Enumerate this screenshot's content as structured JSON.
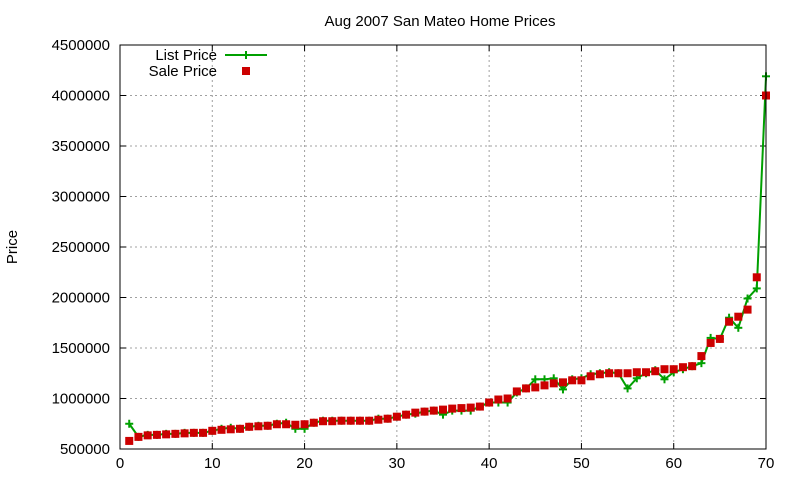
{
  "chart_data": {
    "type": "line",
    "title": "Aug 2007 San Mateo Home Prices",
    "xlabel": "",
    "ylabel": "Price",
    "xlim": [
      0,
      70
    ],
    "ylim": [
      500000,
      4500000
    ],
    "xticks": [
      0,
      10,
      20,
      30,
      40,
      50,
      60,
      70
    ],
    "yticks": [
      500000,
      1000000,
      1500000,
      2000000,
      2500000,
      3000000,
      3500000,
      4000000,
      4500000
    ],
    "grid": true,
    "legend_position": "top-left",
    "series": [
      {
        "name": "List Price",
        "style": "line-plus",
        "color": "#00a000",
        "x": [
          1,
          2,
          3,
          4,
          5,
          6,
          7,
          8,
          9,
          10,
          11,
          12,
          13,
          14,
          15,
          16,
          17,
          18,
          19,
          20,
          21,
          22,
          23,
          24,
          25,
          26,
          27,
          28,
          29,
          30,
          31,
          32,
          33,
          34,
          35,
          36,
          37,
          38,
          39,
          40,
          41,
          42,
          43,
          44,
          45,
          46,
          47,
          48,
          49,
          50,
          51,
          52,
          53,
          54,
          55,
          56,
          57,
          58,
          59,
          60,
          61,
          62,
          63,
          64,
          65,
          66,
          67,
          68,
          69,
          70
        ],
        "y": [
          750000,
          620000,
          640000,
          640000,
          650000,
          650000,
          660000,
          660000,
          660000,
          680000,
          700000,
          710000,
          700000,
          720000,
          730000,
          730000,
          750000,
          760000,
          700000,
          700000,
          760000,
          780000,
          780000,
          780000,
          780000,
          780000,
          780000,
          800000,
          800000,
          820000,
          840000,
          850000,
          870000,
          880000,
          840000,
          880000,
          880000,
          880000,
          920000,
          960000,
          960000,
          960000,
          1060000,
          1100000,
          1190000,
          1190000,
          1200000,
          1090000,
          1190000,
          1200000,
          1240000,
          1250000,
          1260000,
          1250000,
          1100000,
          1200000,
          1250000,
          1280000,
          1190000,
          1260000,
          1290000,
          1320000,
          1350000,
          1600000,
          1590000,
          1800000,
          1700000,
          1990000,
          2090000,
          4190000
        ]
      },
      {
        "name": "Sale Price",
        "style": "square",
        "color": "#cc0000",
        "x": [
          1,
          2,
          3,
          4,
          5,
          6,
          7,
          8,
          9,
          10,
          11,
          12,
          13,
          14,
          15,
          16,
          17,
          18,
          19,
          20,
          21,
          22,
          23,
          24,
          25,
          26,
          27,
          28,
          29,
          30,
          31,
          32,
          33,
          34,
          35,
          36,
          37,
          38,
          39,
          40,
          41,
          42,
          43,
          44,
          45,
          46,
          47,
          48,
          49,
          50,
          51,
          52,
          53,
          54,
          55,
          56,
          57,
          58,
          59,
          60,
          61,
          62,
          63,
          64,
          65,
          66,
          67,
          68,
          69,
          70
        ],
        "y": [
          580000,
          620000,
          635000,
          640000,
          645000,
          650000,
          655000,
          660000,
          660000,
          680000,
          690000,
          695000,
          700000,
          720000,
          725000,
          730000,
          745000,
          745000,
          740000,
          745000,
          760000,
          775000,
          775000,
          780000,
          780000,
          780000,
          780000,
          790000,
          800000,
          820000,
          840000,
          860000,
          870000,
          880000,
          890000,
          900000,
          905000,
          910000,
          920000,
          960000,
          990000,
          1000000,
          1070000,
          1100000,
          1110000,
          1130000,
          1150000,
          1160000,
          1180000,
          1180000,
          1220000,
          1240000,
          1250000,
          1250000,
          1250000,
          1260000,
          1260000,
          1270000,
          1290000,
          1290000,
          1310000,
          1320000,
          1420000,
          1550000,
          1590000,
          1760000,
          1810000,
          1880000,
          2200000,
          4000000
        ]
      }
    ]
  }
}
